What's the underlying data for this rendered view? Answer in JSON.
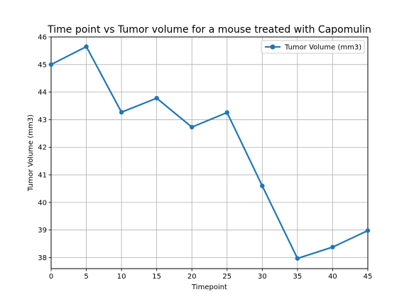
{
  "chart_data": {
    "type": "line",
    "title": "Time point vs Tumor volume for a mouse treated with Capomulin",
    "xlabel": "Timepoint",
    "ylabel": "Tumor Volume (mm3)",
    "x": [
      0,
      5,
      10,
      15,
      20,
      25,
      30,
      35,
      40,
      45
    ],
    "xlim": [
      0,
      45
    ],
    "ylim": [
      37.6,
      46.0
    ],
    "xticks": [
      "0",
      "5",
      "10",
      "15",
      "20",
      "25",
      "30",
      "35",
      "40",
      "45"
    ],
    "yticks": [
      "38",
      "39",
      "40",
      "41",
      "42",
      "43",
      "44",
      "45",
      "46"
    ],
    "grid": true,
    "legend_position": "top-right",
    "series": [
      {
        "name": "Tumor Volume (mm3)",
        "color": "#1f77b4",
        "marker": "circle",
        "values": [
          45.0,
          45.65,
          43.27,
          43.78,
          42.73,
          43.26,
          40.6,
          37.97,
          38.38,
          38.98
        ]
      }
    ]
  }
}
